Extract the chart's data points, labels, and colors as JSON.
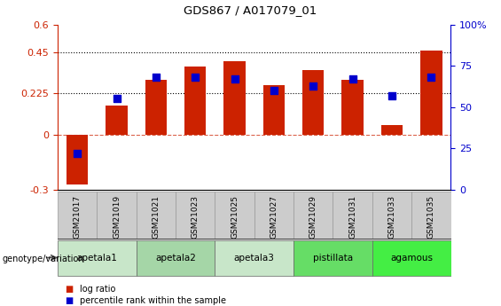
{
  "title": "GDS867 / A017079_01",
  "samples": [
    "GSM21017",
    "GSM21019",
    "GSM21021",
    "GSM21023",
    "GSM21025",
    "GSM21027",
    "GSM21029",
    "GSM21031",
    "GSM21033",
    "GSM21035"
  ],
  "log_ratio": [
    -0.27,
    0.16,
    0.3,
    0.37,
    0.4,
    0.27,
    0.35,
    0.3,
    0.05,
    0.46
  ],
  "percentile": [
    22,
    55,
    68,
    68,
    67,
    60,
    63,
    67,
    57,
    68
  ],
  "bar_color": "#cc2200",
  "dot_color": "#0000cc",
  "ylim_left": [
    -0.3,
    0.6
  ],
  "ylim_right": [
    0,
    100
  ],
  "yticks_left": [
    -0.3,
    0.0,
    0.225,
    0.45,
    0.6
  ],
  "yticks_right": [
    0,
    25,
    50,
    75,
    100
  ],
  "groups": [
    {
      "label": "apetala1",
      "samples": [
        "GSM21017",
        "GSM21019"
      ],
      "color": "#c8e6c9"
    },
    {
      "label": "apetala2",
      "samples": [
        "GSM21021",
        "GSM21023"
      ],
      "color": "#a5d6a7"
    },
    {
      "label": "apetala3",
      "samples": [
        "GSM21025",
        "GSM21027"
      ],
      "color": "#c8e6c9"
    },
    {
      "label": "pistillata",
      "samples": [
        "GSM21029",
        "GSM21031"
      ],
      "color": "#66dd66"
    },
    {
      "label": "agamous",
      "samples": [
        "GSM21033",
        "GSM21035"
      ],
      "color": "#44ee44"
    }
  ],
  "genotype_label": "genotype/variation",
  "legend_items": [
    {
      "label": "log ratio",
      "color": "#cc2200"
    },
    {
      "label": "percentile rank within the sample",
      "color": "#0000cc"
    }
  ],
  "bar_width": 0.55,
  "dot_size": 30,
  "sample_box_color": "#cccccc",
  "sample_box_edge": "#999999",
  "group_box_edge": "#666666"
}
